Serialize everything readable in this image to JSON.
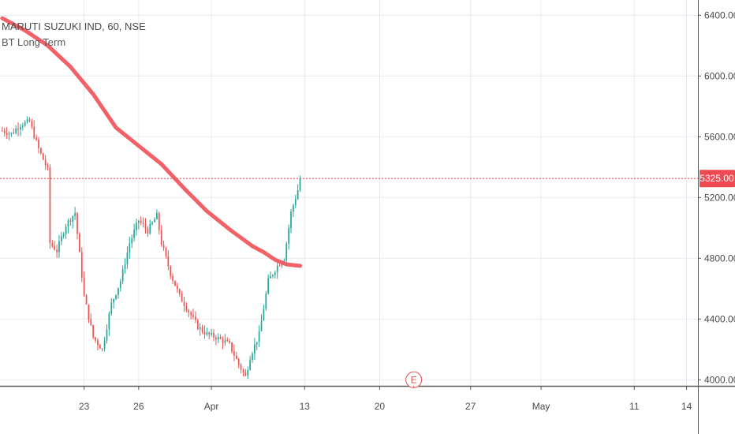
{
  "chart_data": {
    "type": "candlestick",
    "title": "MARUTI SUZUKI IND, 60, NSE",
    "indicator_name": "BT Long Term",
    "current_price": 5325.0,
    "current_price_label": "5325.00",
    "ylim": [
      3960,
      6500
    ],
    "y_ticks": [
      {
        "value": 6400,
        "label": "6400.00"
      },
      {
        "value": 6000,
        "label": "6000.00"
      },
      {
        "value": 5600,
        "label": "5600.00"
      },
      {
        "value": 5200,
        "label": "5200.00"
      },
      {
        "value": 4800,
        "label": "4800.00"
      },
      {
        "value": 4400,
        "label": "4400.00"
      },
      {
        "value": 4000,
        "label": "4000.00"
      }
    ],
    "x_ticks": [
      {
        "index": 36,
        "label": "23"
      },
      {
        "index": 60,
        "label": "26"
      },
      {
        "index": 92,
        "label": "Apr"
      },
      {
        "index": 133,
        "label": "13"
      },
      {
        "index": 166,
        "label": "20"
      },
      {
        "index": 206,
        "label": "27"
      },
      {
        "index": 237,
        "label": "May"
      },
      {
        "index": 278,
        "label": "11"
      },
      {
        "index": 301,
        "label": "14"
      }
    ],
    "x_range": [
      -1,
      306
    ],
    "last_bar_index": 131,
    "event_marker": {
      "index": 181,
      "value": 4000,
      "label": "E"
    },
    "ma_series": [
      [
        0,
        6380
      ],
      [
        10,
        6300
      ],
      [
        20,
        6200
      ],
      [
        30,
        6060
      ],
      [
        40,
        5880
      ],
      [
        50,
        5660
      ],
      [
        60,
        5540
      ],
      [
        70,
        5420
      ],
      [
        80,
        5260
      ],
      [
        90,
        5110
      ],
      [
        100,
        4990
      ],
      [
        110,
        4880
      ],
      [
        115,
        4840
      ],
      [
        120,
        4790
      ],
      [
        125,
        4760
      ],
      [
        131,
        4750
      ]
    ],
    "price_path": [
      [
        0,
        5640
      ],
      [
        4,
        5620
      ],
      [
        8,
        5680
      ],
      [
        12,
        5700
      ],
      [
        16,
        5520
      ],
      [
        20,
        5380
      ],
      [
        21,
        4900
      ],
      [
        24,
        4850
      ],
      [
        28,
        5020
      ],
      [
        32,
        5100
      ],
      [
        36,
        4550
      ],
      [
        40,
        4280
      ],
      [
        44,
        4200
      ],
      [
        48,
        4500
      ],
      [
        52,
        4650
      ],
      [
        56,
        4900
      ],
      [
        60,
        5050
      ],
      [
        64,
        4980
      ],
      [
        68,
        5080
      ],
      [
        70,
        4900
      ],
      [
        74,
        4700
      ],
      [
        78,
        4550
      ],
      [
        82,
        4450
      ],
      [
        86,
        4350
      ],
      [
        90,
        4300
      ],
      [
        94,
        4280
      ],
      [
        98,
        4250
      ],
      [
        100,
        4230
      ],
      [
        104,
        4100
      ],
      [
        107,
        4020
      ],
      [
        109,
        4150
      ],
      [
        113,
        4300
      ],
      [
        117,
        4650
      ],
      [
        121,
        4750
      ],
      [
        124,
        4800
      ],
      [
        127,
        5100
      ],
      [
        130,
        5250
      ],
      [
        131,
        5325
      ]
    ]
  }
}
